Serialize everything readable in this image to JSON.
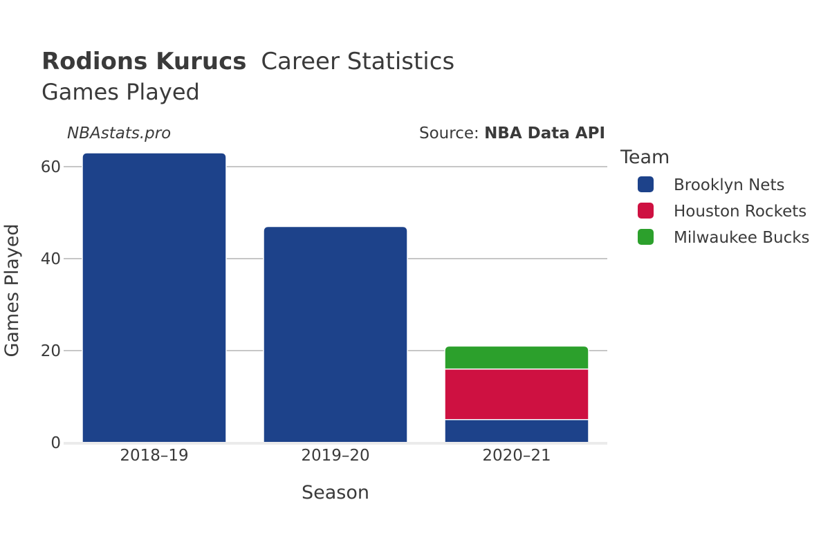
{
  "header": {
    "title_bold": "Rodions Kurucs",
    "title_rest": "Career Statistics",
    "subtitle": "Games Played"
  },
  "credits": {
    "site": "NBAstats.pro",
    "source_prefix": "Source: ",
    "source_name": "NBA Data API"
  },
  "colors": {
    "Brooklyn Nets": "#1d428a",
    "Houston Rockets": "#ce1141",
    "Milwaukee Bucks": "#2ca02c",
    "grid": "#8c8c8c",
    "axis": "#ebebeb",
    "text": "#3a3a3a"
  },
  "chart_data": {
    "type": "bar",
    "stacked": true,
    "categories": [
      "2018–19",
      "2019–20",
      "2020–21"
    ],
    "series": [
      {
        "name": "Brooklyn Nets",
        "values": [
          63,
          47,
          5
        ]
      },
      {
        "name": "Houston Rockets",
        "values": [
          0,
          0,
          11
        ]
      },
      {
        "name": "Milwaukee Bucks",
        "values": [
          0,
          0,
          5
        ]
      }
    ],
    "xlabel": "Season",
    "ylabel": "Games Played",
    "ylim": [
      0,
      65
    ],
    "yticks": [
      0,
      20,
      40,
      60
    ],
    "grid": true,
    "legend": {
      "title": "Team",
      "placement": "right"
    }
  }
}
